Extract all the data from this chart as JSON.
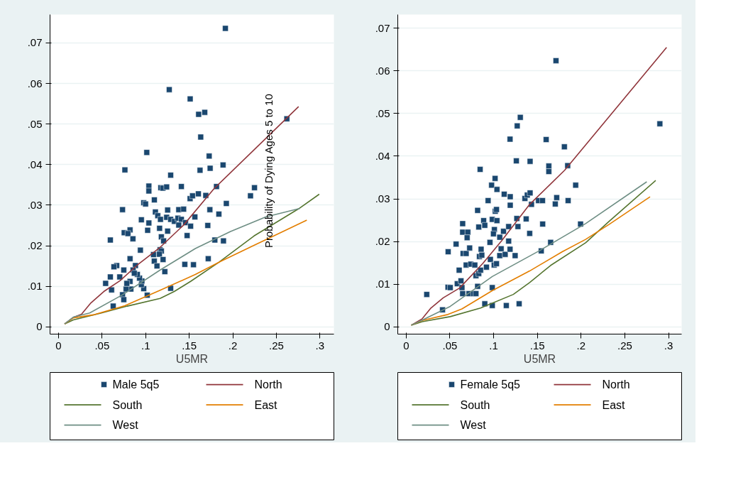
{
  "chart_data": [
    {
      "type": "scatter",
      "xlabel": "U5MR",
      "annotations": [
        "Probability of Dying Ages 5 to 10"
      ],
      "xlim": [
        -0.0097,
        0.316
      ],
      "ylim": [
        -0.0018,
        0.077
      ],
      "xticks": [
        0,
        {
          "value": 0.05,
          "label": ".05"
        },
        {
          "value": 0.1,
          "label": ".1"
        },
        {
          "value": 0.15,
          "label": ".15"
        },
        {
          "value": 0.2,
          "label": ".2"
        },
        {
          "value": 0.25,
          "label": ".25"
        },
        {
          "value": 0.3,
          "label": ".3"
        }
      ],
      "yticks": [
        0,
        {
          "value": 0.01,
          "label": ".01"
        },
        {
          "value": 0.02,
          "label": ".02"
        },
        {
          "value": 0.03,
          "label": ".03"
        },
        {
          "value": 0.04,
          "label": ".04"
        },
        {
          "value": 0.05,
          "label": ".05"
        },
        {
          "value": 0.06,
          "label": ".06"
        },
        {
          "value": 0.07,
          "label": ".07"
        }
      ],
      "grid": "y",
      "legend": "bottom",
      "series": [
        {
          "name": "Male 5q5",
          "marker": "square",
          "color": "#1a476f",
          "x": [
            0.0595,
            0.0735,
            0.0754,
            0.0821,
            0.0797,
            0.0854,
            0.0821,
            0.094,
            0.0951,
            0.0978,
            0.0999,
            0.1037,
            0.1037,
            0.1037,
            0.1023,
            0.11,
            0.1112,
            0.1139,
            0.117,
            0.116,
            0.1174,
            0.1198,
            0.1241,
            0.1287,
            0.118,
            0.1206,
            0.1252,
            0.1241,
            0.1287,
            0.133,
            0.137,
            0.141,
            0.138,
            0.1436,
            0.141,
            0.1252,
            0.1166,
            0.118,
            0.109,
            0.1158,
            0.1099,
            0.12,
            0.113,
            0.122,
            0.138,
            0.1457,
            0.1516,
            0.1476,
            0.151,
            0.1538,
            0.1605,
            0.1565,
            0.169,
            0.1737,
            0.1713,
            0.184,
            0.1813,
            0.1794,
            0.1893,
            0.1926,
            0.2203,
            0.2249,
            0.1718,
            0.1549,
            0.1449,
            0.1287,
            0.1018,
            0.0978,
            0.0951,
            0.0957,
            0.093,
            0.0905,
            0.0883,
            0.0856,
            0.087,
            0.0821,
            0.083,
            0.0776,
            0.0784,
            0.0749,
            0.0735,
            0.0749,
            0.0703,
            0.0668,
            0.0636,
            0.0595,
            0.0541,
            0.0609,
            0.0628,
            0.1915,
            0.1271,
            0.1511,
            0.1608,
            0.1678,
            0.1632,
            0.262,
            0.1013,
            0.1729,
            0.0762,
            0.1624,
            0.174,
            0.1888
          ],
          "values": [
            0.0214,
            0.0289,
            0.0232,
            0.0239,
            0.023,
            0.0217,
            0.0168,
            0.0189,
            0.0264,
            0.0306,
            0.0303,
            0.0347,
            0.0335,
            0.0256,
            0.0238,
            0.0313,
            0.0283,
            0.0274,
            0.0265,
            0.0243,
            0.0343,
            0.0342,
            0.0345,
            0.0374,
            0.0222,
            0.0212,
            0.0288,
            0.027,
            0.0265,
            0.026,
            0.0268,
            0.0265,
            0.0289,
            0.029,
            0.0346,
            0.0236,
            0.019,
            0.0187,
            0.0178,
            0.0179,
            0.0162,
            0.0166,
            0.015,
            0.0136,
            0.0251,
            0.0257,
            0.0248,
            0.0225,
            0.0316,
            0.0323,
            0.0328,
            0.0271,
            0.0324,
            0.0289,
            0.025,
            0.0278,
            0.0346,
            0.0214,
            0.0212,
            0.0304,
            0.0323,
            0.0343,
            0.0168,
            0.0153,
            0.0154,
            0.0095,
            0.0078,
            0.0094,
            0.0104,
            0.0113,
            0.012,
            0.0129,
            0.0151,
            0.014,
            0.0132,
            0.0112,
            0.0093,
            0.0093,
            0.0107,
            0.014,
            0.0079,
            0.0067,
            0.0123,
            0.0151,
            0.0148,
            0.0123,
            0.0107,
            0.0091,
            0.0051,
            0.0736,
            0.0585,
            0.0562,
            0.0524,
            0.0529,
            0.0468,
            0.0513,
            0.043,
            0.0421,
            0.0387,
            0.0386,
            0.0391,
            0.0399
          ]
        },
        {
          "name": "North",
          "type": "line",
          "color": "#90353b",
          "x": [
            0.007,
            0.017,
            0.0264,
            0.0372,
            0.052,
            0.0708,
            0.0897,
            0.1166,
            0.1436,
            0.1786,
            0.2755
          ],
          "values": [
            0.0007,
            0.0023,
            0.0031,
            0.0059,
            0.0087,
            0.0114,
            0.0151,
            0.0196,
            0.0251,
            0.0341,
            0.0543
          ]
        },
        {
          "name": "South",
          "type": "line",
          "color": "#55752f",
          "x": [
            0.007,
            0.017,
            0.0493,
            0.0789,
            0.1166,
            0.1328,
            0.1516,
            0.184,
            0.2243,
            0.2755,
            0.2992
          ],
          "values": [
            0.0007,
            0.0017,
            0.0034,
            0.0051,
            0.007,
            0.0087,
            0.0112,
            0.0159,
            0.0224,
            0.0291,
            0.0327
          ]
        },
        {
          "name": "East",
          "type": "line",
          "color": "#e37e00",
          "x": [
            0.007,
            0.017,
            0.0412,
            0.0762,
            0.1166,
            0.157,
            0.1866,
            0.2243,
            0.2849
          ],
          "values": [
            0.0007,
            0.0022,
            0.003,
            0.0052,
            0.009,
            0.0129,
            0.0162,
            0.0201,
            0.0263
          ]
        },
        {
          "name": "West",
          "type": "line",
          "color": "#6e8e84",
          "x": [
            0.007,
            0.017,
            0.0358,
            0.0735,
            0.1166,
            0.157,
            0.1974,
            0.2378,
            0.2769
          ],
          "values": [
            0.0007,
            0.0024,
            0.0034,
            0.0079,
            0.014,
            0.0193,
            0.0235,
            0.0271,
            0.0292
          ]
        }
      ]
    },
    {
      "type": "scatter",
      "xlabel": "U5MR",
      "xlim": [
        -0.0096,
        0.315
      ],
      "ylim": [
        -0.0017,
        0.0732
      ],
      "xticks": [
        0,
        {
          "value": 0.05,
          "label": ".05"
        },
        {
          "value": 0.1,
          "label": ".1"
        },
        {
          "value": 0.15,
          "label": ".15"
        },
        {
          "value": 0.2,
          "label": ".2"
        },
        {
          "value": 0.25,
          "label": ".25"
        },
        {
          "value": 0.3,
          "label": ".3"
        }
      ],
      "yticks": [
        0,
        {
          "value": 0.01,
          "label": ".01"
        },
        {
          "value": 0.02,
          "label": ".02"
        },
        {
          "value": 0.03,
          "label": ".03"
        },
        {
          "value": 0.04,
          "label": ".04"
        },
        {
          "value": 0.05,
          "label": ".05"
        },
        {
          "value": 0.06,
          "label": ".06"
        },
        {
          "value": 0.07,
          "label": ".07"
        }
      ],
      "grid": "y",
      "legend": "bottom",
      "series": [
        {
          "name": "Female 5q5",
          "marker": "square",
          "color": "#1a476f",
          "x": [
            0.0235,
            0.0416,
            0.048,
            0.0478,
            0.0504,
            0.0571,
            0.0584,
            0.0606,
            0.0627,
            0.0638,
            0.0646,
            0.0646,
            0.0646,
            0.0705,
            0.0651,
            0.0686,
            0.0697,
            0.0686,
            0.0726,
            0.0718,
            0.0739,
            0.0771,
            0.0798,
            0.0785,
            0.0798,
            0.0817,
            0.0817,
            0.083,
            0.0838,
            0.083,
            0.0857,
            0.0865,
            0.0851,
            0.0886,
            0.0899,
            0.0899,
            0.0918,
            0.0937,
            0.0958,
            0.0963,
            0.0977,
            0.0985,
            0.0985,
            0.0985,
            0.1017,
            0.1006,
            0.1033,
            0.1019,
            0.1033,
            0.1038,
            0.1009,
            0.0998,
            0.1038,
            0.107,
            0.107,
            0.1086,
            0.1113,
            0.1121,
            0.1132,
            0.1172,
            0.1145,
            0.1172,
            0.119,
            0.119,
            0.1188,
            0.1246,
            0.1265,
            0.1278,
            0.1292,
            0.1358,
            0.1372,
            0.1385,
            0.1417,
            0.1412,
            0.1433,
            0.1513,
            0.1559,
            0.1545,
            0.1561,
            0.1652,
            0.1705,
            0.1721,
            0.1852,
            0.1938,
            0.1994,
            0.1713,
            0.1305,
            0.127,
            0.1188,
            0.1601,
            0.1809,
            0.126,
            0.1417,
            0.1631,
            0.1631,
            0.1847,
            0.0846,
            0.2901
          ],
          "values": [
            0.0076,
            0.004,
            0.0176,
            0.0093,
            0.0092,
            0.0194,
            0.0101,
            0.0133,
            0.0108,
            0.0092,
            0.0242,
            0.0078,
            0.0222,
            0.0222,
            0.0172,
            0.0172,
            0.0209,
            0.0145,
            0.0185,
            0.0078,
            0.0147,
            0.0078,
            0.0078,
            0.0145,
            0.012,
            0.0273,
            0.0095,
            0.0125,
            0.0165,
            0.0234,
            0.0182,
            0.0168,
            0.0133,
            0.0249,
            0.0238,
            0.0054,
            0.014,
            0.0296,
            0.0198,
            0.0158,
            0.0332,
            0.0252,
            0.0092,
            0.005,
            0.0348,
            0.0145,
            0.0148,
            0.0271,
            0.0275,
            0.0249,
            0.0228,
            0.0218,
            0.0322,
            0.021,
            0.0167,
            0.0183,
            0.0224,
            0.0311,
            0.017,
            0.0201,
            0.005,
            0.0235,
            0.0305,
            0.0285,
            0.0182,
            0.0167,
            0.0254,
            0.0235,
            0.0054,
            0.0301,
            0.0253,
            0.0309,
            0.0314,
            0.0219,
            0.0287,
            0.0296,
            0.0296,
            0.0178,
            0.0241,
            0.0198,
            0.0288,
            0.0303,
            0.0296,
            0.0332,
            0.0241,
            0.0624,
            0.0491,
            0.0471,
            0.044,
            0.0439,
            0.0422,
            0.0389,
            0.0388,
            0.0377,
            0.0364,
            0.0378,
            0.0369,
            0.0476
          ]
        },
        {
          "name": "North",
          "type": "line",
          "color": "#90353b",
          "x": [
            0.0059,
            0.0184,
            0.0278,
            0.0424,
            0.0611,
            0.0878,
            0.1092,
            0.1412,
            0.1812,
            0.2978
          ],
          "values": [
            0.0004,
            0.0019,
            0.0043,
            0.0068,
            0.0091,
            0.0149,
            0.0202,
            0.0287,
            0.0367,
            0.0655
          ]
        },
        {
          "name": "South",
          "type": "line",
          "color": "#55752f",
          "x": [
            0.0059,
            0.0184,
            0.0504,
            0.0851,
            0.1225,
            0.1412,
            0.1652,
            0.2052,
            0.2319,
            0.2853
          ],
          "values": [
            0.0004,
            0.0012,
            0.0024,
            0.0044,
            0.0076,
            0.0104,
            0.0144,
            0.0197,
            0.0247,
            0.0343
          ]
        },
        {
          "name": "East",
          "type": "line",
          "color": "#e37e00",
          "x": [
            0.0059,
            0.0184,
            0.0478,
            0.0638,
            0.0985,
            0.1412,
            0.1785,
            0.2052,
            0.2319,
            0.2789
          ],
          "values": [
            0.0004,
            0.0015,
            0.0029,
            0.0042,
            0.0085,
            0.0131,
            0.0176,
            0.0205,
            0.024,
            0.0305
          ]
        },
        {
          "name": "West",
          "type": "line",
          "color": "#6e8e84",
          "x": [
            0.0059,
            0.0184,
            0.0504,
            0.0985,
            0.1519,
            0.2052,
            0.2751
          ],
          "values": [
            0.0004,
            0.0016,
            0.0048,
            0.0118,
            0.0178,
            0.0242,
            0.034
          ]
        }
      ]
    }
  ]
}
